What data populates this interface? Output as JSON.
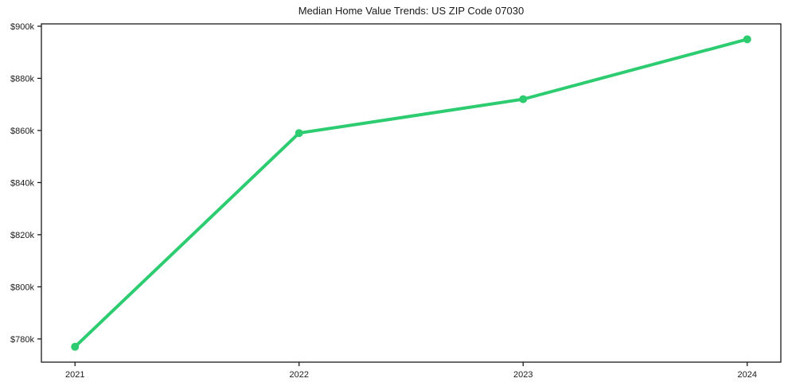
{
  "figure": {
    "background_color": "#ffffff"
  },
  "chart_data": {
    "type": "line",
    "title": "Median Home Value Trends: US ZIP Code 07030",
    "series": [
      {
        "name": "Median Home Value",
        "x": [
          2021,
          2022,
          2023,
          2024
        ],
        "values": [
          777000,
          859000,
          872000,
          895000
        ]
      }
    ],
    "x_ticks": [
      {
        "value": 2021,
        "label": "2021"
      },
      {
        "value": 2022,
        "label": "2022"
      },
      {
        "value": 2023,
        "label": "2023"
      },
      {
        "value": 2024,
        "label": "2024"
      }
    ],
    "y_ticks": [
      {
        "value": 780000,
        "label": "$780k"
      },
      {
        "value": 800000,
        "label": "$800k"
      },
      {
        "value": 820000,
        "label": "$820k"
      },
      {
        "value": 840000,
        "label": "$840k"
      },
      {
        "value": 860000,
        "label": "$860k"
      },
      {
        "value": 880000,
        "label": "$880k"
      },
      {
        "value": 900000,
        "label": "$900k"
      }
    ],
    "xlim": [
      2020.85,
      2024.15
    ],
    "ylim": [
      771100,
      900900
    ],
    "xlabel": "",
    "ylabel": "",
    "grid": false,
    "legend_position": "none",
    "line_color": "#2ecc71",
    "marker_color": "#2ecc71",
    "axis_color": "#1a1a1a",
    "text_color": "#1a1a1a"
  }
}
